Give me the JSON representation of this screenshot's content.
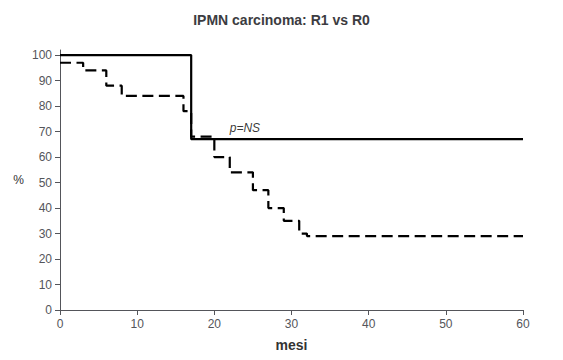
{
  "chart_data": {
    "type": "line",
    "title": "IPMN carcinoma: R1 vs R0",
    "xlabel": "mesi",
    "ylabel": "%",
    "xlim": [
      0,
      60
    ],
    "ylim": [
      0,
      102
    ],
    "xticks": [
      0,
      10,
      20,
      30,
      40,
      50,
      60
    ],
    "yticks": [
      0,
      10,
      20,
      30,
      40,
      50,
      60,
      70,
      80,
      90,
      100
    ],
    "grid": false,
    "series": [
      {
        "x": [
          0,
          17,
          17,
          60
        ],
        "values": [
          100,
          100,
          67,
          67
        ],
        "color": "#000000",
        "line_style": "solid"
      },
      {
        "x": [
          0,
          3,
          3,
          6,
          6,
          8,
          8,
          11,
          11,
          16,
          16,
          17,
          17,
          20,
          20,
          22,
          22,
          25,
          25,
          27,
          27,
          29,
          29,
          31,
          31,
          32,
          32,
          60
        ],
        "values": [
          97,
          97,
          94,
          94,
          88,
          88,
          84,
          84,
          84,
          84,
          78,
          78,
          68,
          68,
          60,
          60,
          54,
          54,
          47,
          47,
          40,
          40,
          35,
          35,
          30,
          30,
          29,
          29
        ],
        "color": "#000000",
        "line_style": "dashed"
      }
    ],
    "annotations": [
      {
        "text": "p=NS",
        "x": 22,
        "y": 68,
        "color": "#000000"
      }
    ]
  }
}
